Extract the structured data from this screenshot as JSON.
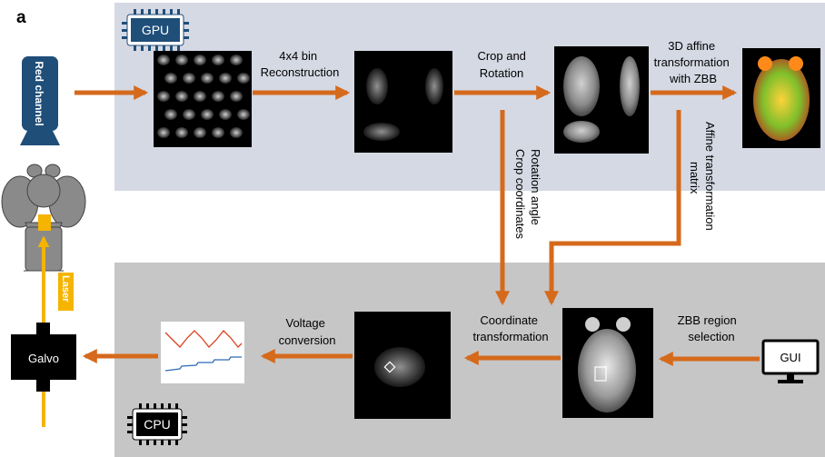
{
  "panel_label": "a",
  "gpu": {
    "chip_label": "GPU",
    "source_label": "Red channel",
    "steps": {
      "bin_reconstruction": [
        "4x4 bin",
        "Reconstruction"
      ],
      "crop_rotation": [
        "Crop and",
        "Rotation"
      ],
      "affine_zbb": [
        "3D affine",
        "transformation",
        "with ZBB"
      ]
    },
    "vertical_labels": {
      "rotation_crop": [
        "Rotation angle",
        "Crop coordinates"
      ],
      "affine_matrix": [
        "Affine transformation",
        "matrix"
      ]
    }
  },
  "cpu": {
    "chip_label": "CPU",
    "steps": {
      "coordinate_transformation": [
        "Coordinate",
        "transformation"
      ],
      "voltage_conversion": [
        "Voltage",
        "conversion"
      ],
      "zbb_selection": [
        "ZBB region",
        "selection"
      ]
    },
    "gui_label": "GUI",
    "galvo_label": "Galvo",
    "laser_label": "Laser"
  },
  "colors": {
    "gpu_panel": "#d5d9e4",
    "cpu_panel": "#c6c6c6",
    "arrow": "#d56a1c",
    "laser": "#f5b400",
    "camera": "#1f4e79",
    "plot_red": "#d9411e",
    "plot_blue": "#2b6cb8"
  }
}
